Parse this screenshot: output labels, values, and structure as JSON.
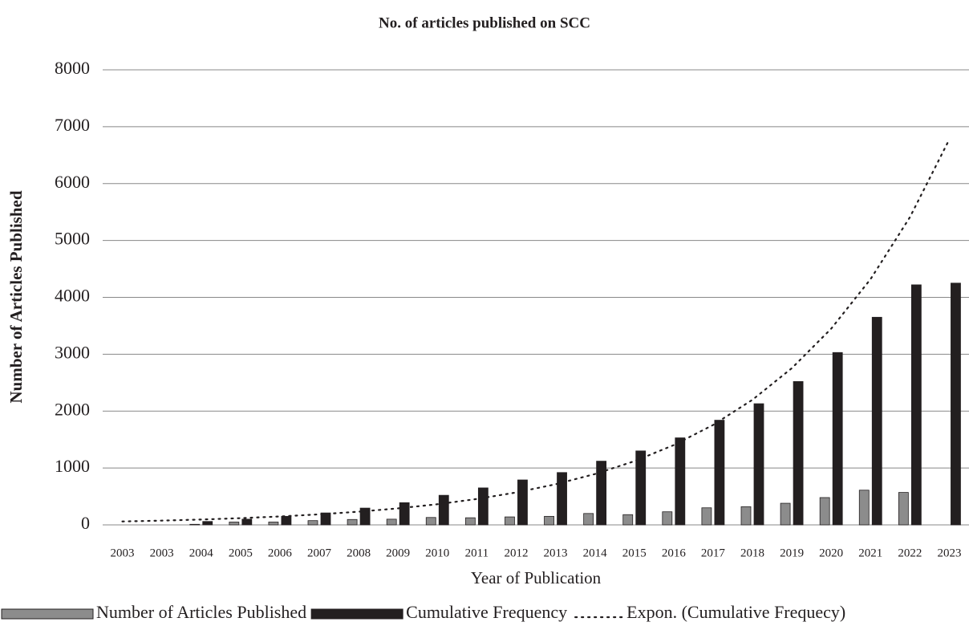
{
  "chart_data": {
    "type": "bar",
    "title": "No. of articles published on SCC",
    "x_label": "Year of Publication",
    "y_label": "Number of Articles Published",
    "categories": [
      "2003",
      "2003",
      "2004",
      "2005",
      "2006",
      "2007",
      "2008",
      "2009",
      "2010",
      "2011",
      "2012",
      "2013",
      "2014",
      "2015",
      "2016",
      "2017",
      "2018",
      "2019",
      "2020",
      "2021",
      "2022",
      "2023"
    ],
    "series": [
      {
        "name": "Number of Articles Published",
        "type": "bar",
        "color": "#8c8c8c",
        "values": [
          null,
          null,
          10,
          50,
          50,
          75,
          95,
          100,
          130,
          125,
          140,
          150,
          200,
          180,
          230,
          300,
          320,
          380,
          480,
          610,
          570,
          null
        ]
      },
      {
        "name": "Cumulative Frequency",
        "type": "bar",
        "color": "#231f20",
        "values": [
          null,
          null,
          60,
          100,
          150,
          210,
          295,
          390,
          520,
          650,
          790,
          920,
          1120,
          1300,
          1530,
          1840,
          2130,
          2520,
          3030,
          3650,
          4220,
          4250
        ]
      },
      {
        "name": "Expon. (Cumulative Frequecy)",
        "type": "trend",
        "color": "#231f20",
        "values": [
          60,
          75,
          94,
          118,
          148,
          185,
          232,
          290,
          363,
          455,
          570,
          714,
          894,
          1119,
          1402,
          1756,
          2199,
          2754,
          3449,
          4320,
          5410,
          6776
        ]
      }
    ],
    "ylim": [
      0,
      8000
    ],
    "yticks": [
      0,
      1000,
      2000,
      3000,
      4000,
      5000,
      6000,
      7000,
      8000
    ],
    "grid": true,
    "legend": "bottom"
  }
}
